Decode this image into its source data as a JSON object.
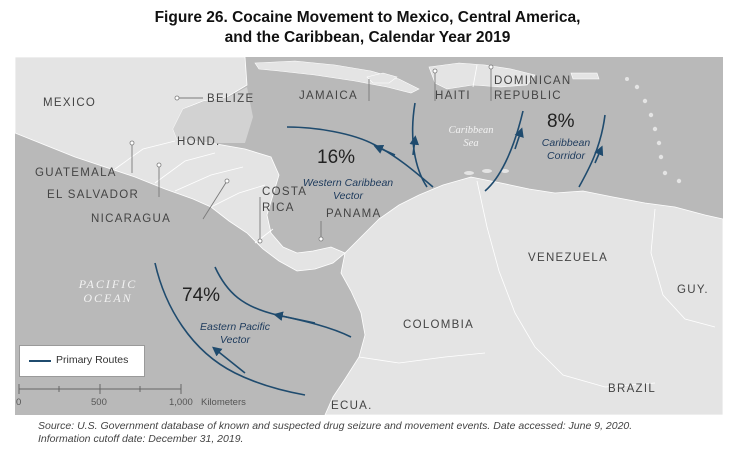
{
  "title": {
    "line1": "Figure 26. Cocaine Movement to Mexico, Central America,",
    "line2": "and the Caribbean, Calendar Year 2019"
  },
  "map": {
    "countries": {
      "mexico": "MEXICO",
      "belize": "BELIZE",
      "jamaica": "JAMAICA",
      "haiti": "HAITI",
      "dominican_republic_1": "DOMINICAN",
      "dominican_republic_2": "REPUBLIC",
      "honduras": "HOND.",
      "guatemala": "GUATEMALA",
      "el_salvador": "EL SALVADOR",
      "nicaragua": "NICARAGUA",
      "costa_rica_1": "COSTA",
      "costa_rica_2": "RICA",
      "panama": "PANAMA",
      "venezuela": "VENEZUELA",
      "colombia": "COLOMBIA",
      "guyana": "GUY.",
      "brazil": "BRAZIL",
      "ecuador": "ECUA."
    },
    "water": {
      "pacific_1": "PACIFIC",
      "pacific_2": "OCEAN",
      "caribbean_1": "Caribbean",
      "caribbean_2": "Sea"
    },
    "routes": [
      {
        "id": "eastern-pacific",
        "percent": "74%",
        "name_1": "Eastern Pacific",
        "name_2": "Vector"
      },
      {
        "id": "western-caribbean",
        "percent": "16%",
        "name_1": "Western Caribbean",
        "name_2": "Vector"
      },
      {
        "id": "caribbean-corridor",
        "percent": "8%",
        "name_1": "Caribbean",
        "name_2": "Corridor"
      }
    ],
    "route_color": "#1f4b6e",
    "land_color": "#e4e4e4",
    "water_color": "#b9b9b9",
    "legend": {
      "label": "Primary Routes"
    },
    "scale": {
      "ticks": [
        "0",
        "500",
        "1,000"
      ],
      "unit": "Kilometers"
    }
  },
  "source": {
    "line1": "Source: U.S. Government database of known and suspected drug seizure and movement events. Date accessed: June 9, 2020.",
    "line2": "Information cutoff date: December 31, 2019."
  }
}
